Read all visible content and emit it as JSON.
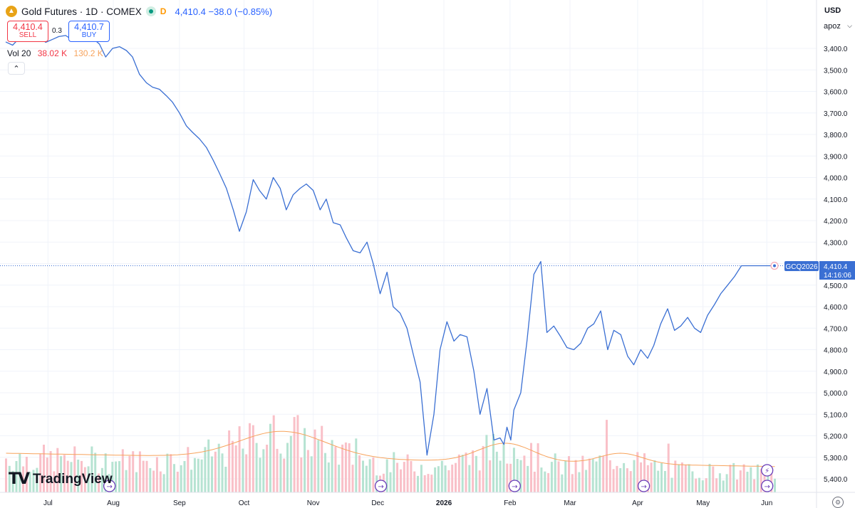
{
  "header": {
    "logo_icon": "gold-futures-icon",
    "title": "Gold Futures · 1D · COMEX",
    "market_status_icon": "market-open-dot-icon",
    "delay_flag": "D",
    "price_line": "4,410.4 −38.0 (−0.85%)"
  },
  "trade": {
    "sell_price": "4,410.4",
    "sell_label": "SELL",
    "spread": "0.3",
    "buy_price": "4,410.7",
    "buy_label": "BUY"
  },
  "volume_legend": {
    "label": "Vol 20",
    "value": "38.02 K",
    "ma_value": "130.2 K"
  },
  "collapse_icon": "chevron-up-icon",
  "brand": {
    "mark": "TV",
    "name": "TradingView"
  },
  "price_scale": {
    "currency": "USD",
    "unit_selector": "apoz",
    "settings_icon": "gear-icon"
  },
  "last_price_label": {
    "symbol": "GCQ2026",
    "price": "4,410.4",
    "countdown": "14:16:06"
  },
  "colors": {
    "line": "#3a6fd3",
    "vol_up": "#9fd8c3",
    "vol_down": "#f7a7b3",
    "vol_ma": "#f7a35c",
    "grid": "#f0f3fa",
    "sell": "#f23645",
    "buy": "#2962ff"
  },
  "event_markers": [
    {
      "date": "Aug",
      "icon": "arrow-right-circle-icon"
    },
    {
      "date": "Dec",
      "icon": "arrow-right-circle-icon"
    },
    {
      "date": "Feb",
      "icon": "arrow-right-circle-icon"
    },
    {
      "date": "Apr",
      "icon": "arrow-right-circle-icon"
    },
    {
      "date": "Jun",
      "icon": "arrow-right-circle-icon"
    },
    {
      "date": "Jun",
      "icon": "lightning-circle-icon"
    }
  ],
  "chart_data": {
    "type": "line",
    "title": "Gold Futures · 1D · COMEX",
    "scale": "inverted",
    "ylim": [
      5450,
      3350
    ],
    "yticks": [
      3400,
      3500,
      3600,
      3700,
      3800,
      3900,
      4000,
      4100,
      4200,
      4300,
      4400,
      4500,
      4600,
      4700,
      4800,
      4900,
      5000,
      5100,
      5200,
      5300,
      5400
    ],
    "ytick_labels": [
      "3,400.0",
      "3,500.0",
      "3,600.0",
      "3,700.0",
      "3,800.0",
      "3,900.0",
      "4,000.0",
      "4,100.0",
      "4,200.0",
      "4,300.0",
      "4,400.0",
      "4,500.0",
      "4,600.0",
      "4,700.0",
      "4,800.0",
      "4,900.0",
      "5,000.0",
      "5,100.0",
      "5,200.0",
      "5,300.0",
      "5,400.0"
    ],
    "x_tick_labels": [
      {
        "label": "Jul",
        "t": 0.055
      },
      {
        "label": "Aug",
        "t": 0.14
      },
      {
        "label": "Sep",
        "t": 0.226
      },
      {
        "label": "Oct",
        "t": 0.31
      },
      {
        "label": "Nov",
        "t": 0.4
      },
      {
        "label": "Dec",
        "t": 0.484
      },
      {
        "label": "2026",
        "t": 0.57
      },
      {
        "label": "Feb",
        "t": 0.656
      },
      {
        "label": "Mar",
        "t": 0.734
      },
      {
        "label": "Apr",
        "t": 0.822
      },
      {
        "label": "May",
        "t": 0.907
      },
      {
        "label": "Jun",
        "t": 0.99
      }
    ],
    "series": [
      {
        "type": "line",
        "t": [
          0.0,
          0.009,
          0.017,
          0.026,
          0.035,
          0.043,
          0.052,
          0.061,
          0.069,
          0.078,
          0.087,
          0.096,
          0.104,
          0.113,
          0.122,
          0.13,
          0.139,
          0.148,
          0.157,
          0.165,
          0.174,
          0.183,
          0.191,
          0.2,
          0.209,
          0.217,
          0.226,
          0.235,
          0.243,
          0.252,
          0.261,
          0.27,
          0.278,
          0.287,
          0.296,
          0.304,
          0.313,
          0.322,
          0.33,
          0.339,
          0.348,
          0.357,
          0.365,
          0.374,
          0.383,
          0.391,
          0.4,
          0.409,
          0.417,
          0.426,
          0.435,
          0.443,
          0.452,
          0.461,
          0.47,
          0.478,
          0.487,
          0.496,
          0.504,
          0.513,
          0.522,
          0.53,
          0.539,
          0.548,
          0.557,
          0.565,
          0.574,
          0.583,
          0.591,
          0.6,
          0.609,
          0.617,
          0.626,
          0.635,
          0.643,
          0.648,
          0.652,
          0.657,
          0.661,
          0.67,
          0.678,
          0.687,
          0.696,
          0.704,
          0.713,
          0.722,
          0.73,
          0.739,
          0.748,
          0.757,
          0.765,
          0.774,
          0.783,
          0.791,
          0.8,
          0.809,
          0.817,
          0.826,
          0.835,
          0.843,
          0.852,
          0.861,
          0.87,
          0.878,
          0.887,
          0.896,
          0.904,
          0.913,
          0.922,
          0.93,
          0.939,
          0.948,
          0.957,
          0.965,
          0.974,
          0.983,
          0.991,
          1.0
        ],
        "values": [
          3370,
          3385,
          3355,
          3362,
          3348,
          3340,
          3372,
          3358,
          3345,
          3340,
          3362,
          3350,
          3342,
          3352,
          3380,
          3440,
          3400,
          3392,
          3410,
          3440,
          3520,
          3560,
          3580,
          3590,
          3620,
          3650,
          3700,
          3760,
          3790,
          3820,
          3860,
          3920,
          3980,
          4050,
          4150,
          4250,
          4160,
          4010,
          4060,
          4100,
          4000,
          4050,
          4150,
          4080,
          4050,
          4030,
          4060,
          4150,
          4100,
          4210,
          4220,
          4280,
          4340,
          4350,
          4300,
          4400,
          4540,
          4440,
          4600,
          4630,
          4700,
          4820,
          4950,
          5290,
          5100,
          4800,
          4670,
          4760,
          4730,
          4740,
          4900,
          5100,
          4980,
          5220,
          5210,
          5240,
          5160,
          5220,
          5080,
          5000,
          4760,
          4450,
          4390,
          4720,
          4690,
          4740,
          4790,
          4800,
          4770,
          4700,
          4680,
          4620,
          4800,
          4710,
          4730,
          4830,
          4870,
          4800,
          4840,
          4780,
          4680,
          4610,
          4710,
          4690,
          4650,
          4700,
          4720,
          4640,
          4590,
          4540,
          4500,
          4460,
          4410,
          4410,
          4410,
          4410,
          4410,
          4410
        ]
      },
      {
        "type": "bar",
        "name": "Vol 20",
        "t": [],
        "values": [],
        "ma_values": []
      }
    ]
  }
}
